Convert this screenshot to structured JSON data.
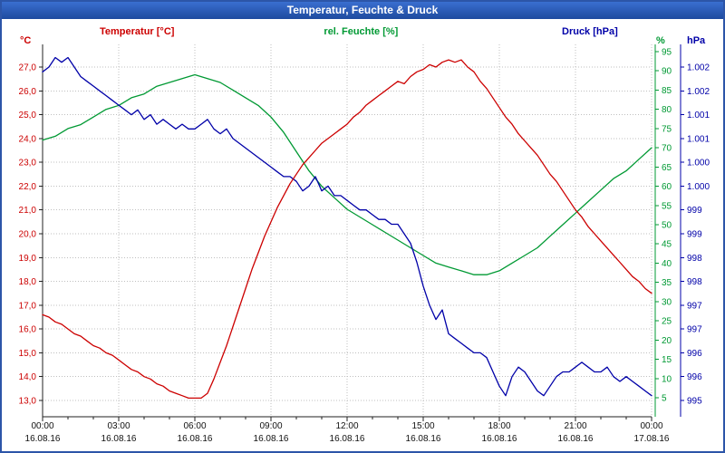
{
  "window": {
    "title": "Temperatur, Feuchte & Druck"
  },
  "header": {
    "temp_label": "Temperatur [°C]",
    "humidity_label": "rel. Feuchte [%]",
    "pressure_label": "Druck [hPa]",
    "temp_unit": "°C",
    "humidity_unit": "%",
    "pressure_unit": "hPa"
  },
  "colors": {
    "temperature": "#cc0000",
    "humidity": "#009933",
    "pressure": "#0000a8",
    "titlebar": "#1e4a9e",
    "border": "#2c55a8",
    "grid": "#bfbfbf"
  },
  "chart_data": {
    "type": "line",
    "title": "Temperatur, Feuchte & Druck",
    "legend_position": "top",
    "grid": "dotted",
    "x_axis": {
      "range_hours": [
        0,
        24
      ],
      "tick_interval_hours": 3,
      "ticks": [
        "00:00",
        "03:00",
        "06:00",
        "09:00",
        "12:00",
        "15:00",
        "18:00",
        "21:00",
        "00:00"
      ],
      "dates": [
        "16.08.16",
        "16.08.16",
        "16.08.16",
        "16.08.16",
        "16.08.16",
        "16.08.16",
        "16.08.16",
        "16.08.16",
        "17.08.16"
      ]
    },
    "axes": {
      "temperature": {
        "unit": "°C",
        "min": 13,
        "max": 27,
        "side": "left",
        "tick_labels": [
          "27,0",
          "26,0",
          "25,0",
          "24,0",
          "23,0",
          "22,0",
          "21,0",
          "20,0",
          "19,0",
          "18,0",
          "17,0",
          "16,0",
          "15,0",
          "14,0",
          "13,0"
        ]
      },
      "humidity": {
        "unit": "%",
        "min": 5,
        "max": 95,
        "side": "right",
        "tick_labels": [
          "95",
          "90",
          "85",
          "80",
          "75",
          "70",
          "65",
          "60",
          "55",
          "50",
          "45",
          "40",
          "35",
          "30",
          "25",
          "20",
          "15",
          "10",
          "5"
        ]
      },
      "pressure": {
        "unit": "hPa",
        "min": 995,
        "max": 1002,
        "side": "far-right",
        "tick_labels": [
          "1.002",
          "1.002",
          "1.001",
          "1.001",
          "1.000",
          "1.000",
          "999",
          "999",
          "998",
          "998",
          "997",
          "997",
          "996",
          "996",
          "995"
        ]
      }
    },
    "series": [
      {
        "name": "Temperatur",
        "unit": "°C",
        "axis": "temperature",
        "color": "#cc0000",
        "points": [
          [
            0,
            16.6
          ],
          [
            0.25,
            16.5
          ],
          [
            0.5,
            16.3
          ],
          [
            0.75,
            16.2
          ],
          [
            1,
            16.0
          ],
          [
            1.25,
            15.8
          ],
          [
            1.5,
            15.7
          ],
          [
            1.75,
            15.5
          ],
          [
            2,
            15.3
          ],
          [
            2.25,
            15.2
          ],
          [
            2.5,
            15.0
          ],
          [
            2.75,
            14.9
          ],
          [
            3,
            14.7
          ],
          [
            3.25,
            14.5
          ],
          [
            3.5,
            14.3
          ],
          [
            3.75,
            14.2
          ],
          [
            4,
            14.0
          ],
          [
            4.25,
            13.9
          ],
          [
            4.5,
            13.7
          ],
          [
            4.75,
            13.6
          ],
          [
            5,
            13.4
          ],
          [
            5.25,
            13.3
          ],
          [
            5.5,
            13.2
          ],
          [
            5.75,
            13.1
          ],
          [
            6,
            13.1
          ],
          [
            6.25,
            13.1
          ],
          [
            6.5,
            13.3
          ],
          [
            6.75,
            13.9
          ],
          [
            7,
            14.6
          ],
          [
            7.25,
            15.3
          ],
          [
            7.5,
            16.1
          ],
          [
            7.75,
            16.9
          ],
          [
            8,
            17.7
          ],
          [
            8.25,
            18.5
          ],
          [
            8.5,
            19.2
          ],
          [
            8.75,
            19.9
          ],
          [
            9,
            20.5
          ],
          [
            9.25,
            21.1
          ],
          [
            9.5,
            21.6
          ],
          [
            9.75,
            22.1
          ],
          [
            10,
            22.5
          ],
          [
            10.25,
            22.9
          ],
          [
            10.5,
            23.2
          ],
          [
            10.75,
            23.5
          ],
          [
            11,
            23.8
          ],
          [
            11.25,
            24.0
          ],
          [
            11.5,
            24.2
          ],
          [
            11.75,
            24.4
          ],
          [
            12,
            24.6
          ],
          [
            12.25,
            24.9
          ],
          [
            12.5,
            25.1
          ],
          [
            12.75,
            25.4
          ],
          [
            13,
            25.6
          ],
          [
            13.25,
            25.8
          ],
          [
            13.5,
            26.0
          ],
          [
            13.75,
            26.2
          ],
          [
            14,
            26.4
          ],
          [
            14.25,
            26.3
          ],
          [
            14.5,
            26.6
          ],
          [
            14.75,
            26.8
          ],
          [
            15,
            26.9
          ],
          [
            15.25,
            27.1
          ],
          [
            15.5,
            27.0
          ],
          [
            15.75,
            27.2
          ],
          [
            16,
            27.3
          ],
          [
            16.25,
            27.2
          ],
          [
            16.5,
            27.3
          ],
          [
            16.75,
            27.0
          ],
          [
            17,
            26.8
          ],
          [
            17.25,
            26.4
          ],
          [
            17.5,
            26.1
          ],
          [
            17.75,
            25.7
          ],
          [
            18,
            25.3
          ],
          [
            18.25,
            24.9
          ],
          [
            18.5,
            24.6
          ],
          [
            18.75,
            24.2
          ],
          [
            19,
            23.9
          ],
          [
            19.25,
            23.6
          ],
          [
            19.5,
            23.3
          ],
          [
            19.75,
            22.9
          ],
          [
            20,
            22.5
          ],
          [
            20.25,
            22.2
          ],
          [
            20.5,
            21.8
          ],
          [
            20.75,
            21.4
          ],
          [
            21,
            21.0
          ],
          [
            21.25,
            20.7
          ],
          [
            21.5,
            20.3
          ],
          [
            21.75,
            20.0
          ],
          [
            22,
            19.7
          ],
          [
            22.25,
            19.4
          ],
          [
            22.5,
            19.1
          ],
          [
            22.75,
            18.8
          ],
          [
            23,
            18.5
          ],
          [
            23.25,
            18.2
          ],
          [
            23.5,
            18.0
          ],
          [
            23.75,
            17.7
          ],
          [
            24,
            17.5
          ]
        ]
      },
      {
        "name": "rel. Feuchte",
        "unit": "%",
        "axis": "humidity",
        "color": "#009933",
        "points": [
          [
            0,
            72
          ],
          [
            0.5,
            73
          ],
          [
            1,
            75
          ],
          [
            1.5,
            76
          ],
          [
            2,
            78
          ],
          [
            2.5,
            80
          ],
          [
            3,
            81
          ],
          [
            3.5,
            83
          ],
          [
            4,
            84
          ],
          [
            4.5,
            86
          ],
          [
            5,
            87
          ],
          [
            5.5,
            88
          ],
          [
            6,
            89
          ],
          [
            6.5,
            88
          ],
          [
            7,
            87
          ],
          [
            7.5,
            85
          ],
          [
            8,
            83
          ],
          [
            8.5,
            81
          ],
          [
            9,
            78
          ],
          [
            9.5,
            74
          ],
          [
            10,
            69
          ],
          [
            10.5,
            64
          ],
          [
            11,
            60
          ],
          [
            11.5,
            57
          ],
          [
            12,
            54
          ],
          [
            12.5,
            52
          ],
          [
            13,
            50
          ],
          [
            13.5,
            48
          ],
          [
            14,
            46
          ],
          [
            14.5,
            44
          ],
          [
            15,
            42
          ],
          [
            15.5,
            40
          ],
          [
            16,
            39
          ],
          [
            16.5,
            38
          ],
          [
            17,
            37
          ],
          [
            17.5,
            37
          ],
          [
            18,
            38
          ],
          [
            18.5,
            40
          ],
          [
            19,
            42
          ],
          [
            19.5,
            44
          ],
          [
            20,
            47
          ],
          [
            20.5,
            50
          ],
          [
            21,
            53
          ],
          [
            21.5,
            56
          ],
          [
            22,
            59
          ],
          [
            22.5,
            62
          ],
          [
            23,
            64
          ],
          [
            23.5,
            67
          ],
          [
            24,
            70
          ]
        ]
      },
      {
        "name": "Druck",
        "unit": "hPa",
        "axis": "pressure",
        "color": "#0000a8",
        "points": [
          [
            0,
            1001.9
          ],
          [
            0.25,
            1002.0
          ],
          [
            0.5,
            1002.2
          ],
          [
            0.75,
            1002.1
          ],
          [
            1,
            1002.2
          ],
          [
            1.25,
            1002.0
          ],
          [
            1.5,
            1001.8
          ],
          [
            1.75,
            1001.7
          ],
          [
            2,
            1001.6
          ],
          [
            2.25,
            1001.5
          ],
          [
            2.5,
            1001.4
          ],
          [
            2.75,
            1001.3
          ],
          [
            3,
            1001.2
          ],
          [
            3.25,
            1001.1
          ],
          [
            3.5,
            1001.0
          ],
          [
            3.75,
            1001.1
          ],
          [
            4,
            1000.9
          ],
          [
            4.25,
            1001.0
          ],
          [
            4.5,
            1000.8
          ],
          [
            4.75,
            1000.9
          ],
          [
            5,
            1000.8
          ],
          [
            5.25,
            1000.7
          ],
          [
            5.5,
            1000.8
          ],
          [
            5.75,
            1000.7
          ],
          [
            6,
            1000.7
          ],
          [
            6.25,
            1000.8
          ],
          [
            6.5,
            1000.9
          ],
          [
            6.75,
            1000.7
          ],
          [
            7,
            1000.6
          ],
          [
            7.25,
            1000.7
          ],
          [
            7.5,
            1000.5
          ],
          [
            7.75,
            1000.4
          ],
          [
            8,
            1000.3
          ],
          [
            8.25,
            1000.2
          ],
          [
            8.5,
            1000.1
          ],
          [
            8.75,
            1000.0
          ],
          [
            9,
            999.9
          ],
          [
            9.25,
            999.8
          ],
          [
            9.5,
            999.7
          ],
          [
            9.75,
            999.7
          ],
          [
            10,
            999.6
          ],
          [
            10.25,
            999.4
          ],
          [
            10.5,
            999.5
          ],
          [
            10.75,
            999.7
          ],
          [
            11,
            999.4
          ],
          [
            11.25,
            999.5
          ],
          [
            11.5,
            999.3
          ],
          [
            11.75,
            999.3
          ],
          [
            12,
            999.2
          ],
          [
            12.25,
            999.1
          ],
          [
            12.5,
            999.0
          ],
          [
            12.75,
            999.0
          ],
          [
            13,
            998.9
          ],
          [
            13.25,
            998.8
          ],
          [
            13.5,
            998.8
          ],
          [
            13.75,
            998.7
          ],
          [
            14,
            998.7
          ],
          [
            14.25,
            998.5
          ],
          [
            14.5,
            998.3
          ],
          [
            14.75,
            997.9
          ],
          [
            15,
            997.4
          ],
          [
            15.25,
            997.0
          ],
          [
            15.5,
            996.7
          ],
          [
            15.75,
            996.9
          ],
          [
            16,
            996.4
          ],
          [
            16.25,
            996.3
          ],
          [
            16.5,
            996.2
          ],
          [
            16.75,
            996.1
          ],
          [
            17,
            996.0
          ],
          [
            17.25,
            996.0
          ],
          [
            17.5,
            995.9
          ],
          [
            17.75,
            995.6
          ],
          [
            18,
            995.3
          ],
          [
            18.25,
            995.1
          ],
          [
            18.5,
            995.5
          ],
          [
            18.75,
            995.7
          ],
          [
            19,
            995.6
          ],
          [
            19.25,
            995.4
          ],
          [
            19.5,
            995.2
          ],
          [
            19.75,
            995.1
          ],
          [
            20,
            995.3
          ],
          [
            20.25,
            995.5
          ],
          [
            20.5,
            995.6
          ],
          [
            20.75,
            995.6
          ],
          [
            21,
            995.7
          ],
          [
            21.25,
            995.8
          ],
          [
            21.5,
            995.7
          ],
          [
            21.75,
            995.6
          ],
          [
            22,
            995.6
          ],
          [
            22.25,
            995.7
          ],
          [
            22.5,
            995.5
          ],
          [
            22.75,
            995.4
          ],
          [
            23,
            995.5
          ],
          [
            23.25,
            995.4
          ],
          [
            23.5,
            995.3
          ],
          [
            23.75,
            995.2
          ],
          [
            24,
            995.1
          ]
        ]
      }
    ]
  }
}
